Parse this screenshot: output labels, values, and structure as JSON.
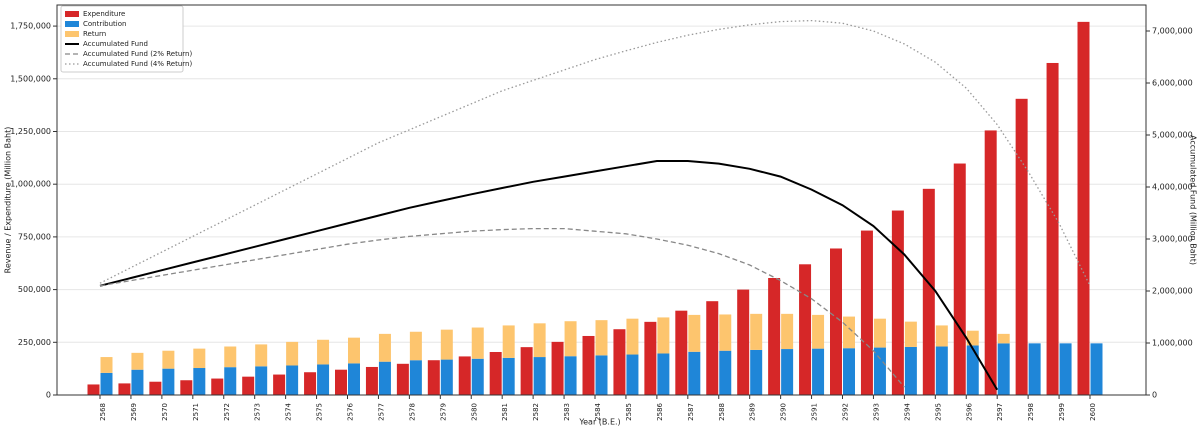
{
  "chart_data": {
    "type": "bar-line",
    "x_label": "Year (B.E.)",
    "y_label": "Revenue / Expenditure (Million Baht)",
    "y2_label": "Accumulated Fund (Million Baht)",
    "categories": [
      "2568",
      "2569",
      "2570",
      "2571",
      "2572",
      "2573",
      "2574",
      "2575",
      "2576",
      "2577",
      "2578",
      "2579",
      "2580",
      "2581",
      "2582",
      "2583",
      "2584",
      "2585",
      "2586",
      "2587",
      "2588",
      "2589",
      "2590",
      "2591",
      "2592",
      "2593",
      "2594",
      "2595",
      "2596",
      "2597",
      "2598",
      "2599",
      "2600"
    ],
    "series": [
      {
        "name": "Expenditure",
        "type": "bar",
        "color": "#d62728",
        "values": [
          50000,
          55000,
          63000,
          70000,
          78000,
          87000,
          97000,
          108000,
          120000,
          133000,
          148000,
          165000,
          183000,
          204000,
          227000,
          252000,
          280000,
          312000,
          347000,
          400000,
          445000,
          500000,
          555000,
          620000,
          695000,
          780000,
          875000,
          978000,
          1098000,
          1255000,
          1405000,
          1575000,
          1770000
        ]
      },
      {
        "name": "Contribution",
        "type": "bar",
        "color": "#1f86d8",
        "values": [
          105000,
          120000,
          125000,
          128000,
          132000,
          136000,
          140000,
          145000,
          150000,
          158000,
          165000,
          168000,
          172000,
          176000,
          180000,
          184000,
          188000,
          192000,
          197000,
          205000,
          210000,
          214000,
          218000,
          220000,
          222000,
          225000,
          228000,
          230000,
          235000,
          245000,
          245000,
          245000,
          245000
        ]
      },
      {
        "name": "Return",
        "type": "bar",
        "stack": "Contribution",
        "color": "#fdc56e",
        "values": [
          75000,
          80000,
          85000,
          92000,
          98000,
          104000,
          112000,
          117000,
          122000,
          132000,
          135000,
          142000,
          148000,
          154000,
          160000,
          166000,
          167000,
          170000,
          171000,
          175000,
          172000,
          171000,
          167000,
          160000,
          150000,
          137000,
          120000,
          100000,
          70000,
          45000,
          0,
          0,
          0
        ]
      },
      {
        "name": "Accumulated Fund",
        "type": "line",
        "axis": "y2",
        "color": "#000000",
        "dash": "solid",
        "values": [
          2100000,
          2250000,
          2400000,
          2550000,
          2700000,
          2850000,
          3000000,
          3150000,
          3300000,
          3450000,
          3600000,
          3730000,
          3860000,
          3980000,
          4100000,
          4200000,
          4300000,
          4400000,
          4500000,
          4500000,
          4450000,
          4350000,
          4200000,
          3950000,
          3650000,
          3250000,
          2700000,
          2000000,
          1100000,
          100000,
          null,
          null,
          null
        ]
      },
      {
        "name": "Accumulated Fund (2% Return)",
        "type": "line",
        "axis": "y2",
        "color": "#888888",
        "dash": "dashed",
        "values": [
          2100000,
          2200000,
          2300000,
          2400000,
          2500000,
          2600000,
          2700000,
          2800000,
          2900000,
          2980000,
          3050000,
          3100000,
          3150000,
          3180000,
          3200000,
          3200000,
          3150000,
          3100000,
          3000000,
          2880000,
          2720000,
          2500000,
          2200000,
          1850000,
          1400000,
          850000,
          150000,
          null,
          null,
          null,
          null,
          null,
          null
        ]
      },
      {
        "name": "Accumulated Fund (4% Return)",
        "type": "line",
        "axis": "y2",
        "color": "#999999",
        "dash": "dotted",
        "values": [
          2150000,
          2450000,
          2750000,
          3050000,
          3350000,
          3650000,
          3950000,
          4250000,
          4550000,
          4850000,
          5100000,
          5350000,
          5600000,
          5850000,
          6050000,
          6250000,
          6450000,
          6620000,
          6780000,
          6920000,
          7030000,
          7120000,
          7180000,
          7200000,
          7150000,
          7000000,
          6750000,
          6400000,
          5900000,
          5200000,
          4300000,
          3300000,
          2100000
        ]
      }
    ],
    "ylim": [
      0,
      1850000
    ],
    "yticks": [
      0,
      {
        "value": 250000,
        "label": "250,000"
      },
      {
        "value": 500000,
        "label": "500,000"
      },
      {
        "value": 750000,
        "label": "750,000"
      },
      {
        "value": 1000000,
        "label": "1,000,000"
      },
      {
        "value": 1250000,
        "label": "1,250,000"
      },
      {
        "value": 1500000,
        "label": "1,500,000"
      },
      {
        "value": 1750000,
        "label": "1,750,000"
      }
    ],
    "y2lim": [
      0,
      7500000
    ],
    "y2ticks": [
      0,
      {
        "value": 1000000,
        "label": "1,000,000"
      },
      {
        "value": 2000000,
        "label": "2,000,000"
      },
      {
        "value": 3000000,
        "label": "3,000,000"
      },
      {
        "value": 4000000,
        "label": "4,000,000"
      },
      {
        "value": 5000000,
        "label": "5,000,000"
      },
      {
        "value": 6000000,
        "label": "6,000,000"
      },
      {
        "value": 7000000,
        "label": "7,000,000"
      }
    ],
    "grid": true,
    "legend": "upper left"
  }
}
